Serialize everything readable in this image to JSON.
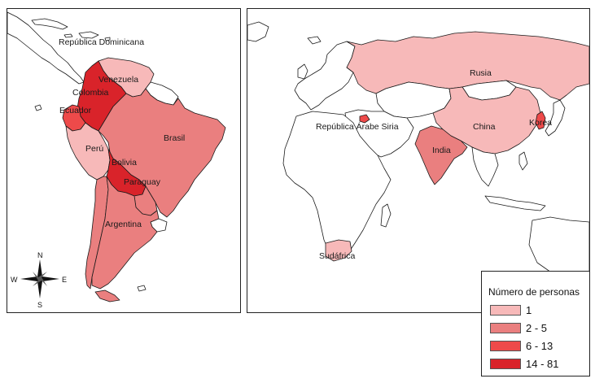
{
  "legend": {
    "title": "Número de personas",
    "classes": [
      {
        "label": "1",
        "color": "#f7b9b9"
      },
      {
        "label": "2 - 5",
        "color": "#ea7f7f"
      },
      {
        "label": "6 - 13",
        "color": "#ee4a4a"
      },
      {
        "label": "14 - 81",
        "color": "#d9232a"
      }
    ]
  },
  "south_america": {
    "labels": {
      "dominican_republic": "República Dominicana",
      "venezuela": "Venezuela",
      "colombia": "Colombia",
      "ecuador": "Ecuador",
      "peru": "Perú",
      "brazil": "Brasil",
      "bolivia": "Bolivia",
      "paraguay": "Paraguay",
      "argentina": "Argentina"
    },
    "classes": {
      "dominican_republic": "1",
      "venezuela": "1",
      "colombia": "14 - 81",
      "ecuador": "6 - 13",
      "peru": "1",
      "brazil": "2 - 5",
      "bolivia": "14 - 81",
      "paraguay": "2 - 5",
      "argentina": "2 - 5",
      "chile": "2 - 5"
    }
  },
  "compass": {
    "north": "N",
    "south": "S",
    "east": "E",
    "west": "W"
  },
  "world": {
    "labels": {
      "russia": "Rusia",
      "china": "China",
      "korea": "Korea",
      "india": "India",
      "syria": "República Árabe Siria",
      "south_africa": "Sudáfrica"
    },
    "classes": {
      "russia": "1",
      "china": "1",
      "korea": "6 - 13",
      "india": "2 - 5",
      "syria": "6 - 13",
      "south_africa": "1"
    }
  }
}
